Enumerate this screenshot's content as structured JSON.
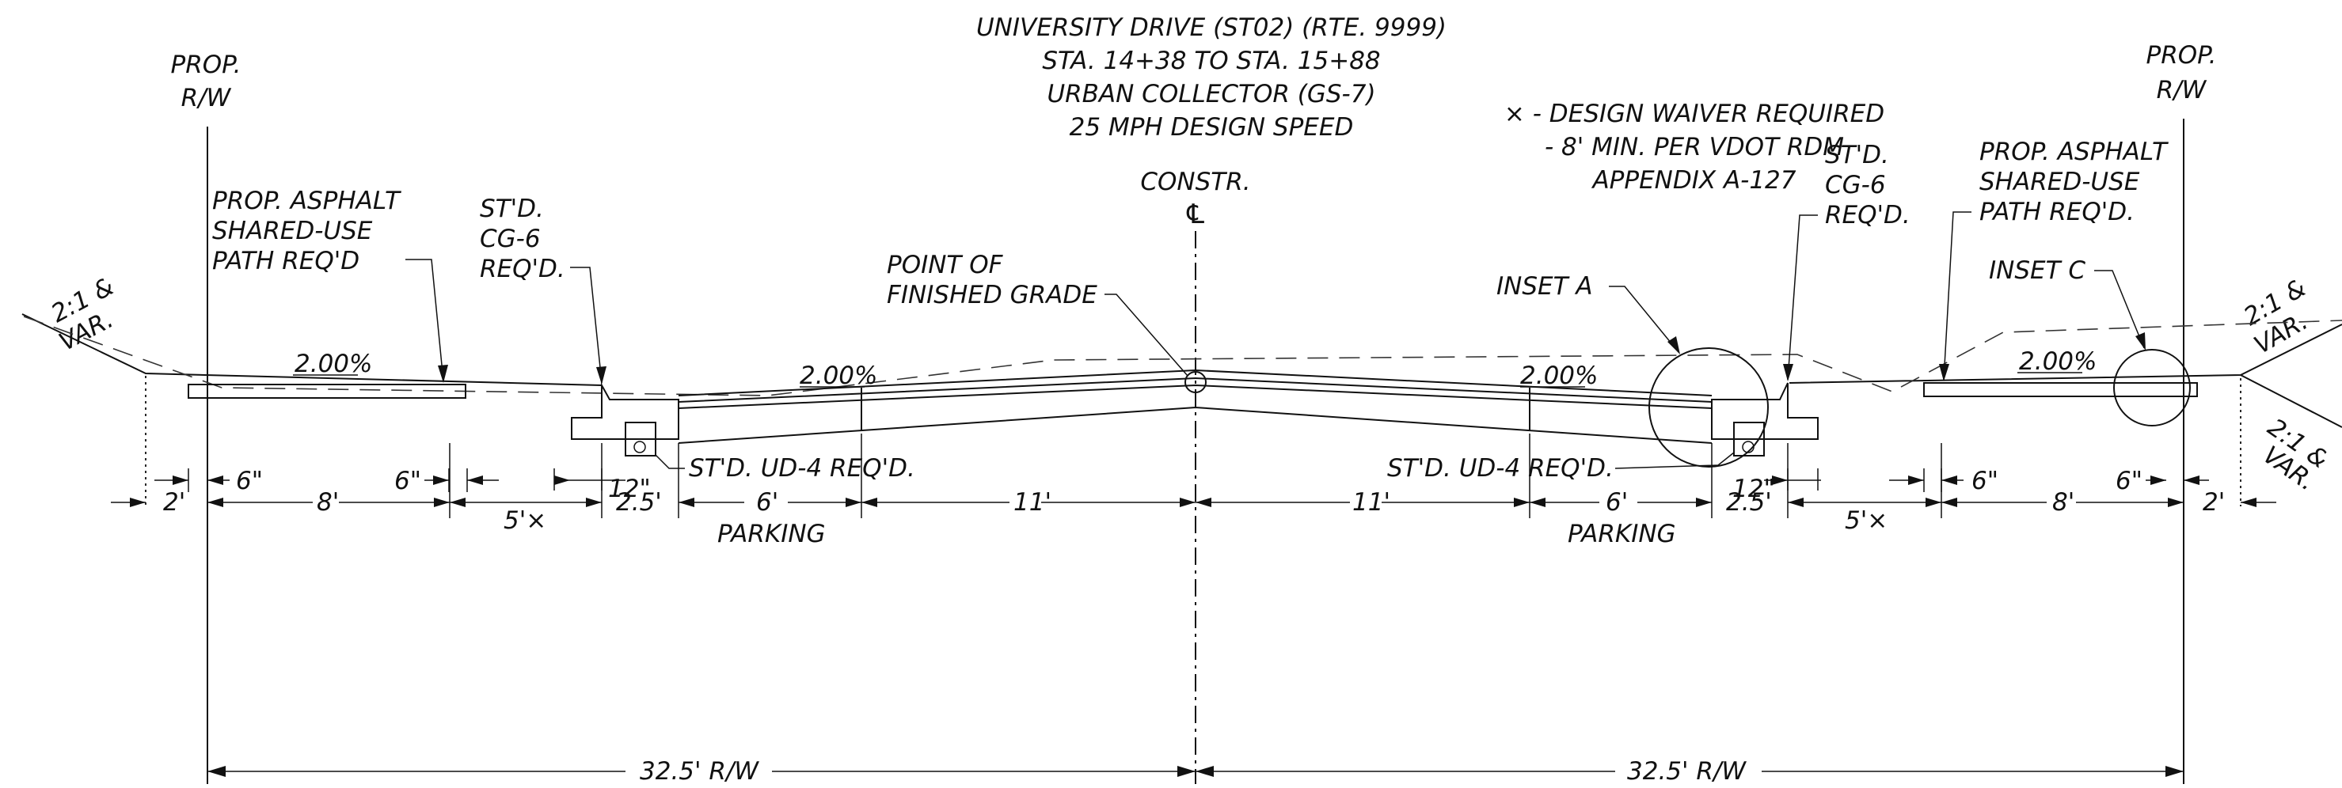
{
  "title": {
    "line1": "UNIVERSITY DRIVE (ST02) (RTE. 9999)",
    "line2": "STA. 14+38 TO STA. 15+88",
    "line3": "URBAN COLLECTOR (GS-7)",
    "line4": "25 MPH DESIGN SPEED"
  },
  "centerline": {
    "line1": "CONSTR.",
    "symbol": "℄"
  },
  "waiver_note": {
    "line1": "⨯ - DESIGN WAIVER REQUIRED",
    "line2": "- 8' MIN. PER VDOT RDM",
    "line3": "APPENDIX A-127"
  },
  "left": {
    "rw_line1": "PROP.",
    "rw_line2": "R/W",
    "slope_line1": "2:1 &",
    "slope_line2": "VAR.",
    "path_line1": "PROP. ASPHALT",
    "path_line2": "SHARED-USE",
    "path_line3": "PATH REQ'D",
    "curb_line1": "ST'D.",
    "curb_line2": "CG-6",
    "curb_line3": "REQ'D.",
    "path_slope": "2.00%",
    "lane_slope": "2.00%",
    "underdrain": "ST'D. UD-4 REQ'D.",
    "dim_6in_a": "6\"",
    "dim_6in_b": "6\"",
    "dim_12in": "12\"",
    "dim_2": "2'",
    "dim_8": "8'",
    "dim_5": "5'⨯",
    "dim_2_5": "2.5'",
    "dim_6": "6'",
    "parking": "PARKING",
    "dim_11": "11'",
    "rw_total": "32.5' R/W"
  },
  "right": {
    "rw_line1": "PROP.",
    "rw_line2": "R/W",
    "slope_top_line1": "2:1 &",
    "slope_top_line2": "VAR.",
    "slope_bot_line1": "2:1 &",
    "slope_bot_line2": "VAR.",
    "path_line1": "PROP. ASPHALT",
    "path_line2": "SHARED-USE",
    "path_line3": "PATH REQ'D.",
    "curb_line1": "ST'D.",
    "curb_line2": "CG-6",
    "curb_line3": "REQ'D.",
    "path_slope": "2.00%",
    "lane_slope": "2.00%",
    "underdrain": "ST'D. UD-4 REQ'D.",
    "dim_6in_a": "6\"",
    "dim_6in_b": "6\"",
    "dim_12in": "12\"",
    "dim_2": "2'",
    "dim_8": "8'",
    "dim_5": "5'⨯",
    "dim_2_5": "2.5'",
    "dim_6": "6'",
    "parking": "PARKING",
    "dim_11": "11'",
    "rw_total": "32.5' R/W"
  },
  "finished_grade": {
    "line1": "POINT OF",
    "line2": "FINISHED GRADE"
  },
  "insets": {
    "a": "INSET A",
    "c": "INSET C"
  }
}
